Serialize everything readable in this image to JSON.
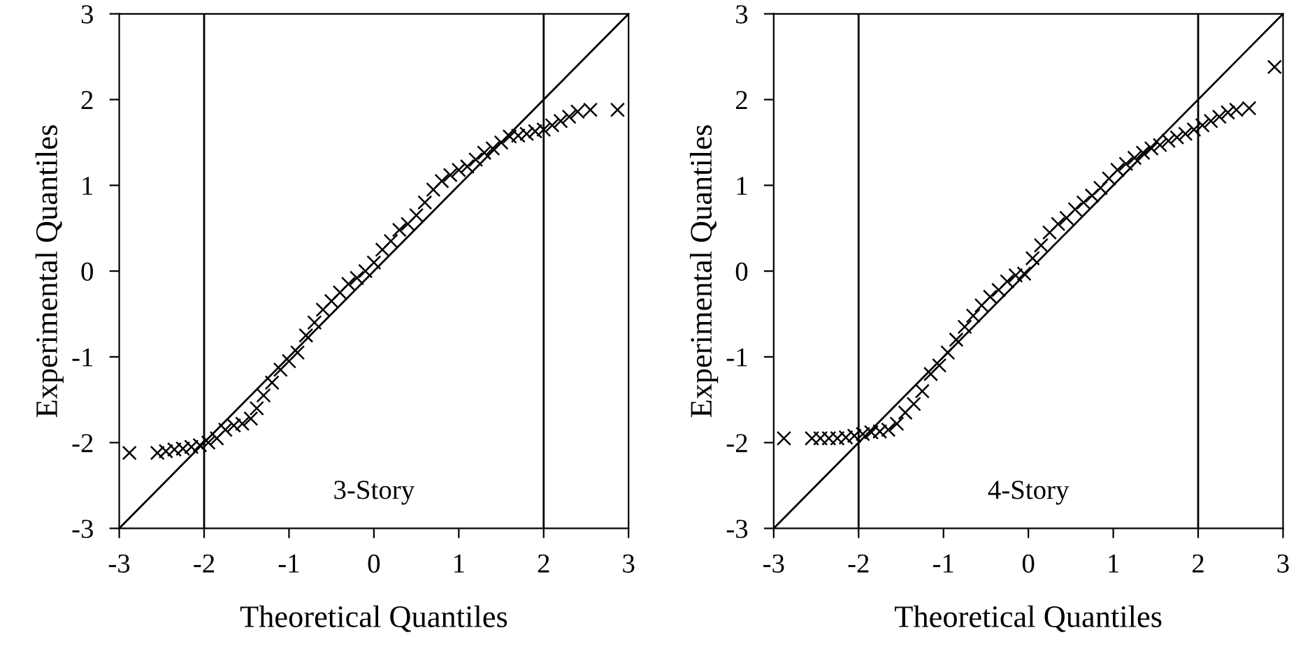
{
  "chart_data": [
    {
      "type": "scatter",
      "xlabel": "Theoretical Quantiles",
      "ylabel": "Experimental Quantiles",
      "xlim": [
        -3,
        3
      ],
      "ylim": [
        -3,
        3
      ],
      "xticks": [
        -3,
        -2,
        -1,
        0,
        1,
        2,
        3
      ],
      "yticks": [
        -3,
        -2,
        -1,
        0,
        1,
        2,
        3
      ],
      "grid": false,
      "legend": false,
      "annotations": [
        "3-Story"
      ],
      "ref_lines": [
        {
          "axis": "x",
          "value": -2,
          "color": "#000000"
        },
        {
          "axis": "x",
          "value": 2,
          "color": "#000000"
        }
      ],
      "series": [
        {
          "color": "#000000",
          "marker": "cross",
          "x": [
            -2.88,
            -2.55,
            -2.45,
            -2.35,
            -2.25,
            -2.15,
            -2.05,
            -1.95,
            -1.85,
            -1.75,
            -1.65,
            -1.55,
            -1.45,
            -1.38,
            -1.3,
            -1.2,
            -1.1,
            -1.0,
            -0.9,
            -0.8,
            -0.7,
            -0.6,
            -0.5,
            -0.4,
            -0.3,
            -0.2,
            -0.1,
            0.0,
            0.1,
            0.2,
            0.3,
            0.4,
            0.5,
            0.6,
            0.7,
            0.8,
            0.9,
            1.0,
            1.1,
            1.2,
            1.3,
            1.4,
            1.5,
            1.6,
            1.7,
            1.8,
            1.9,
            2.0,
            2.1,
            2.2,
            2.3,
            2.4,
            2.55,
            2.87
          ],
          "values": [
            -2.12,
            -2.12,
            -2.1,
            -2.08,
            -2.07,
            -2.05,
            -2.03,
            -2.0,
            -1.95,
            -1.85,
            -1.8,
            -1.78,
            -1.72,
            -1.6,
            -1.45,
            -1.3,
            -1.15,
            -1.05,
            -0.95,
            -0.75,
            -0.6,
            -0.45,
            -0.35,
            -0.25,
            -0.15,
            -0.08,
            0.0,
            0.1,
            0.25,
            0.35,
            0.48,
            0.55,
            0.65,
            0.8,
            0.95,
            1.05,
            1.12,
            1.18,
            1.22,
            1.3,
            1.38,
            1.43,
            1.5,
            1.57,
            1.58,
            1.6,
            1.63,
            1.65,
            1.7,
            1.75,
            1.8,
            1.86,
            1.88,
            1.88
          ]
        },
        {
          "type": "line",
          "color": "#000000",
          "x": [
            -3,
            3
          ],
          "values": [
            -3,
            3
          ]
        }
      ]
    },
    {
      "type": "scatter",
      "xlabel": "Theoretical Quantiles",
      "ylabel": "Experimental Quantiles",
      "xlim": [
        -3,
        3
      ],
      "ylim": [
        -3,
        3
      ],
      "xticks": [
        -3,
        -2,
        -1,
        0,
        1,
        2,
        3
      ],
      "yticks": [
        -3,
        -2,
        -1,
        0,
        1,
        2,
        3
      ],
      "grid": false,
      "legend": false,
      "annotations": [
        "4-Story"
      ],
      "ref_lines": [
        {
          "axis": "x",
          "value": -2,
          "color": "#000000"
        },
        {
          "axis": "x",
          "value": 2,
          "color": "#000000"
        }
      ],
      "series": [
        {
          "color": "#000000",
          "marker": "cross",
          "x": [
            -2.88,
            -2.55,
            -2.45,
            -2.35,
            -2.25,
            -2.15,
            -2.05,
            -1.95,
            -1.85,
            -1.75,
            -1.65,
            -1.55,
            -1.45,
            -1.35,
            -1.25,
            -1.15,
            -1.05,
            -0.95,
            -0.85,
            -0.75,
            -0.65,
            -0.55,
            -0.45,
            -0.35,
            -0.25,
            -0.15,
            -0.05,
            0.05,
            0.15,
            0.25,
            0.35,
            0.45,
            0.55,
            0.65,
            0.75,
            0.85,
            0.95,
            1.05,
            1.15,
            1.25,
            1.35,
            1.45,
            1.55,
            1.65,
            1.75,
            1.85,
            1.95,
            2.05,
            2.15,
            2.25,
            2.35,
            2.45,
            2.6,
            2.9
          ],
          "values": [
            -1.95,
            -1.95,
            -1.95,
            -1.95,
            -1.95,
            -1.94,
            -1.92,
            -1.9,
            -1.88,
            -1.87,
            -1.85,
            -1.78,
            -1.65,
            -1.55,
            -1.4,
            -1.2,
            -1.1,
            -0.95,
            -0.8,
            -0.65,
            -0.52,
            -0.4,
            -0.3,
            -0.22,
            -0.12,
            -0.05,
            -0.03,
            0.15,
            0.3,
            0.45,
            0.55,
            0.62,
            0.72,
            0.8,
            0.88,
            0.97,
            1.08,
            1.18,
            1.25,
            1.32,
            1.38,
            1.43,
            1.47,
            1.52,
            1.56,
            1.6,
            1.65,
            1.7,
            1.75,
            1.8,
            1.85,
            1.88,
            1.9,
            2.38
          ]
        },
        {
          "type": "line",
          "color": "#000000",
          "x": [
            -3,
            3
          ],
          "values": [
            -3,
            3
          ]
        }
      ]
    }
  ]
}
